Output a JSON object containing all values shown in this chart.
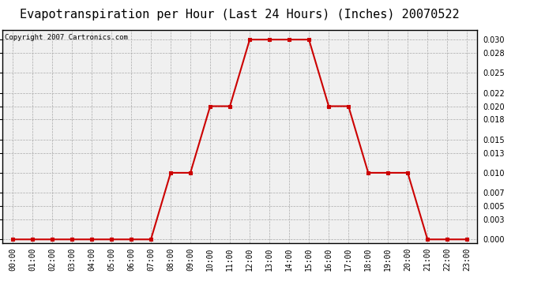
{
  "title": "Evapotranspiration per Hour (Last 24 Hours) (Inches) 20070522",
  "copyright_text": "Copyright 2007 Cartronics.com",
  "hours": [
    "00:00",
    "01:00",
    "02:00",
    "03:00",
    "04:00",
    "05:00",
    "06:00",
    "07:00",
    "08:00",
    "09:00",
    "10:00",
    "11:00",
    "12:00",
    "13:00",
    "14:00",
    "15:00",
    "16:00",
    "17:00",
    "18:00",
    "19:00",
    "20:00",
    "21:00",
    "22:00",
    "23:00"
  ],
  "values": [
    0.0,
    0.0,
    0.0,
    0.0,
    0.0,
    0.0,
    0.0,
    0.0,
    0.01,
    0.01,
    0.02,
    0.02,
    0.03,
    0.03,
    0.03,
    0.03,
    0.02,
    0.02,
    0.01,
    0.01,
    0.01,
    0.0,
    0.0,
    0.0
  ],
  "line_color": "#cc0000",
  "marker": "s",
  "marker_size": 3,
  "marker_color": "#cc0000",
  "bg_color": "#f0f0f0",
  "grid_color": "#aaaaaa",
  "ylim": [
    -0.0005,
    0.0315
  ],
  "yticks": [
    0.0,
    0.003,
    0.005,
    0.007,
    0.01,
    0.013,
    0.015,
    0.018,
    0.02,
    0.022,
    0.025,
    0.028,
    0.03
  ],
  "title_fontsize": 11,
  "copyright_fontsize": 6.5,
  "tick_fontsize": 7,
  "line_width": 1.5
}
